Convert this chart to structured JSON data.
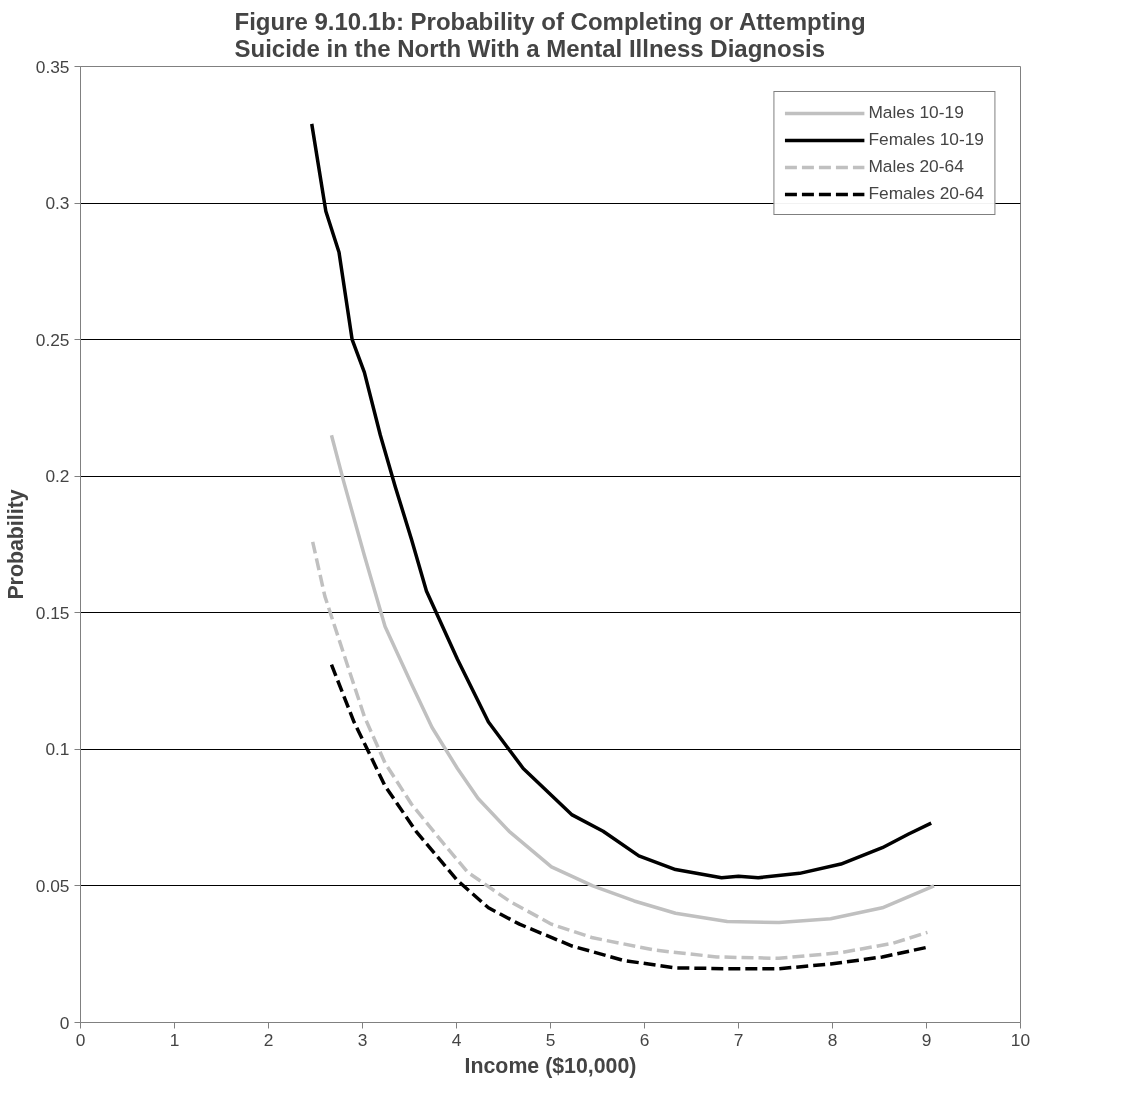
{
  "chart_data": {
    "type": "line",
    "title": "Figure 9.10.1b: Probability of Completing or Attempting Suicide in the North With a Mental Illness Diagnosis",
    "xlabel": "Income ($10,000)",
    "ylabel": "Probability",
    "xlim": [
      0,
      10
    ],
    "xticks": [
      0,
      1,
      2,
      3,
      4,
      5,
      6,
      7,
      8,
      9,
      10
    ],
    "ylim": [
      0,
      0.35
    ],
    "yticks": [
      0,
      0.05,
      0.1,
      0.15,
      0.2,
      0.25,
      0.3,
      0.35
    ],
    "grid": "y",
    "legend": "top right",
    "series": [
      {
        "name": "Males 10-19",
        "color": "#c0c0c0",
        "line_style": "solid",
        "x": [
          2.67,
          2.8,
          3.02,
          3.24,
          3.52,
          3.74,
          4.01,
          4.23,
          4.56,
          5.01,
          5.45,
          5.89,
          6.33,
          6.88,
          7.43,
          7.98,
          8.53,
          9.08
        ],
        "values": [
          0.215,
          0.198,
          0.171,
          0.145,
          0.124,
          0.108,
          0.093,
          0.082,
          0.07,
          0.057,
          0.05,
          0.0445,
          0.04,
          0.037,
          0.0366,
          0.038,
          0.042,
          0.05
        ]
      },
      {
        "name": "Females 10-19",
        "color": "#000000",
        "line_style": "solid",
        "x": [
          2.46,
          2.61,
          2.75,
          2.89,
          3.02,
          3.19,
          3.35,
          3.52,
          3.68,
          4.01,
          4.34,
          4.71,
          5.23,
          5.56,
          5.94,
          6.33,
          6.82,
          7.0,
          7.21,
          7.65,
          8.09,
          8.53,
          8.81,
          9.05
        ],
        "values": [
          0.329,
          0.297,
          0.282,
          0.25,
          0.238,
          0.215,
          0.196,
          0.177,
          0.158,
          0.133,
          0.11,
          0.093,
          0.076,
          0.07,
          0.061,
          0.056,
          0.053,
          0.0535,
          0.053,
          0.0546,
          0.058,
          0.064,
          0.069,
          0.073
        ]
      },
      {
        "name": "Males 20-64",
        "color": "#c0c0c0",
        "line_style": "dashed",
        "x": [
          2.47,
          2.6,
          2.8,
          3.02,
          3.24,
          3.52,
          3.85,
          4.12,
          4.56,
          5.01,
          5.45,
          6.11,
          6.77,
          7.43,
          8.09,
          8.64,
          9.01
        ],
        "values": [
          0.176,
          0.156,
          0.135,
          0.112,
          0.095,
          0.08,
          0.066,
          0.055,
          0.0445,
          0.036,
          0.031,
          0.0265,
          0.024,
          0.0235,
          0.0256,
          0.029,
          0.033
        ]
      },
      {
        "name": "Females 20-64",
        "color": "#000000",
        "line_style": "dashed",
        "x": [
          2.67,
          2.91,
          3.24,
          3.57,
          4.01,
          4.34,
          4.67,
          5.23,
          5.78,
          6.33,
          6.88,
          7.43,
          7.98,
          8.53,
          9.03
        ],
        "values": [
          0.131,
          0.11,
          0.0866,
          0.07,
          0.052,
          0.042,
          0.036,
          0.028,
          0.0227,
          0.02,
          0.0197,
          0.0197,
          0.0214,
          0.024,
          0.0277
        ]
      }
    ]
  }
}
